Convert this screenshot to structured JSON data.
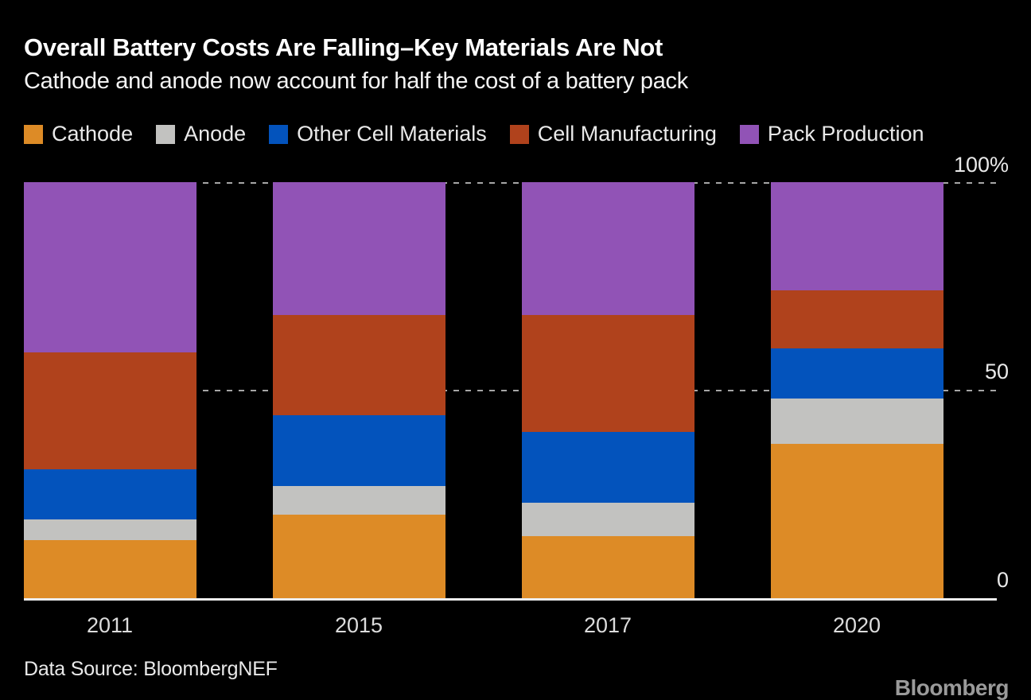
{
  "header": {
    "title": "Overall Battery Costs Are Falling–Key Materials Are Not",
    "subtitle": "Cathode and anode now account for half the cost of a battery pack"
  },
  "footer": {
    "source": "Data Source: BloombergNEF",
    "brand": "Bloomberg"
  },
  "colors": {
    "background": "#000000",
    "title_text": "#FFFFFF",
    "axis_text": "#E9E9E9",
    "gridline": "#A6A6A6",
    "baseline": "#ECECEC",
    "brand_gray": "#9A9A9A"
  },
  "chart_data": {
    "type": "bar",
    "stacked": true,
    "unit": "% of battery pack cost",
    "title": "Overall Battery Costs Are Falling–Key Materials Are Not",
    "subtitle": "Cathode and anode now account for half the cost of a battery pack",
    "categories": [
      "2011",
      "2015",
      "2017",
      "2020"
    ],
    "series": [
      {
        "name": "Cathode",
        "color": "#DD8B26",
        "values": [
          14,
          20,
          15,
          37
        ]
      },
      {
        "name": "Anode",
        "color": "#C2C2C0",
        "values": [
          5,
          7,
          8,
          11
        ]
      },
      {
        "name": "Other Cell Materials",
        "color": "#0353BC",
        "values": [
          12,
          17,
          17,
          12
        ]
      },
      {
        "name": "Cell Manufacturing",
        "color": "#B0421C",
        "values": [
          28,
          24,
          28,
          14
        ]
      },
      {
        "name": "Pack Production",
        "color": "#9153B6",
        "values": [
          41,
          32,
          32,
          26
        ]
      }
    ],
    "ylim": [
      0,
      100
    ],
    "yticks": [
      "100%",
      "50",
      "0"
    ],
    "xlabel": "",
    "ylabel": "",
    "legend_position": "top",
    "grid": "horizontal dashed lines at 50 and 100"
  }
}
